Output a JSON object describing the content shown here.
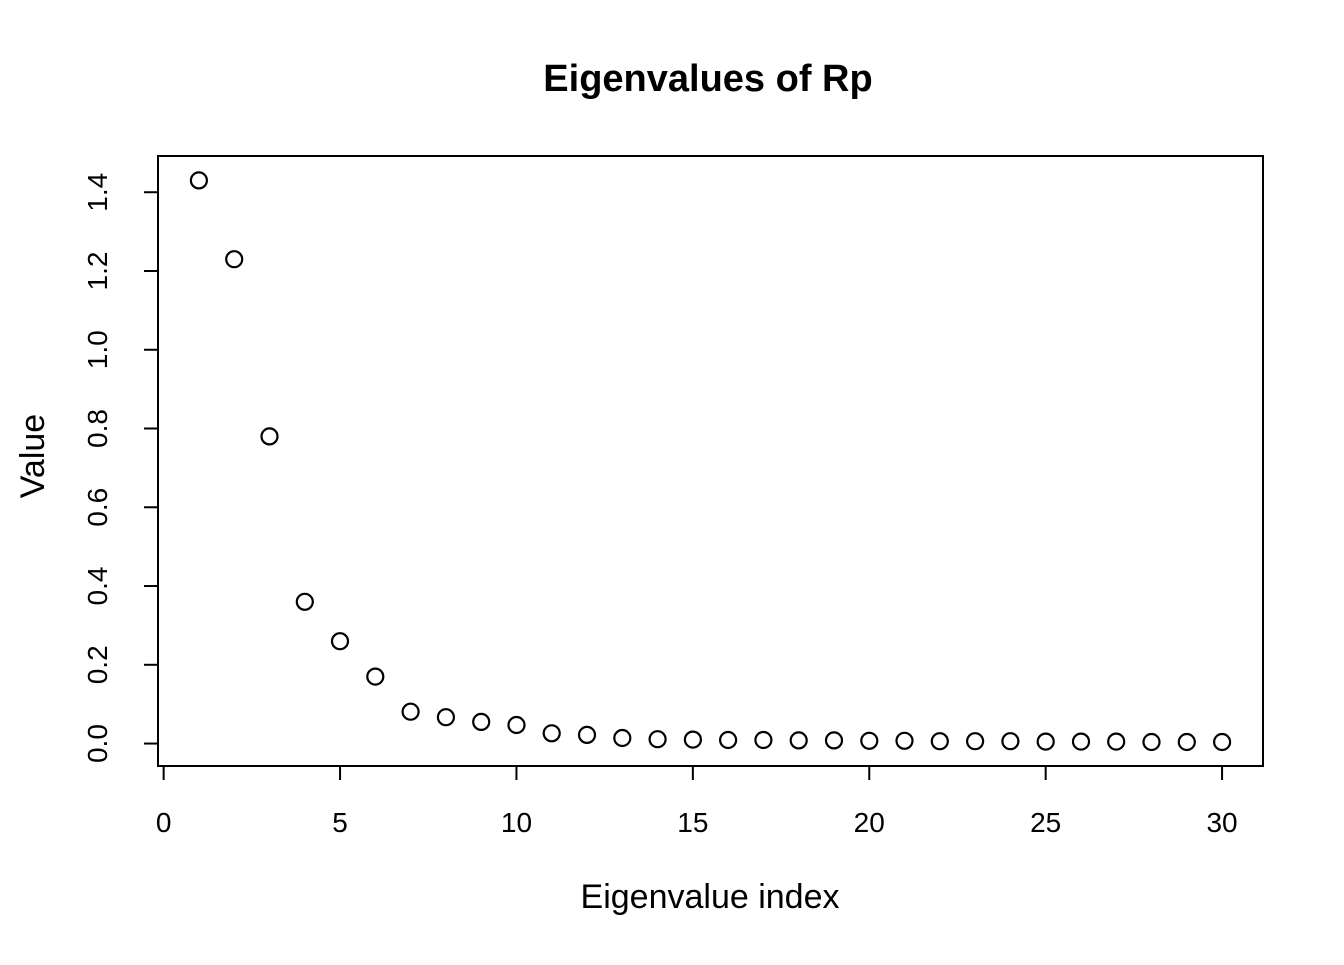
{
  "page": {
    "background": "#ffffff",
    "foreground": "#000000"
  },
  "chart_data": {
    "type": "scatter",
    "title": "Eigenvalues of Rp",
    "xlabel": "Eigenvalue index",
    "ylabel": "Value",
    "marker": "open-circle",
    "grid": false,
    "frame": "box",
    "legend": "none",
    "point_color": "#000000",
    "background": "#ffffff",
    "x": [
      1,
      2,
      3,
      4,
      5,
      6,
      7,
      8,
      9,
      10,
      11,
      12,
      13,
      14,
      15,
      16,
      17,
      18,
      19,
      20,
      21,
      22,
      23,
      24,
      25,
      26,
      27,
      28,
      29,
      30
    ],
    "y": [
      1.43,
      1.23,
      0.78,
      0.36,
      0.26,
      0.17,
      0.081,
      0.067,
      0.055,
      0.047,
      0.026,
      0.022,
      0.014,
      0.011,
      0.01,
      0.009,
      0.009,
      0.008,
      0.008,
      0.007,
      0.007,
      0.006,
      0.006,
      0.006,
      0.005,
      0.005,
      0.005,
      0.004,
      0.004,
      0.004
    ],
    "x_ticks": [
      0,
      5,
      10,
      15,
      20,
      25,
      30
    ],
    "x_tick_labels": [
      "0",
      "5",
      "10",
      "15",
      "20",
      "25",
      "30"
    ],
    "y_ticks": [
      0.0,
      0.2,
      0.4,
      0.6,
      0.8,
      1.0,
      1.2,
      1.4
    ],
    "y_tick_labels": [
      "0.0",
      "0.2",
      "0.4",
      "0.6",
      "0.8",
      "1.0",
      "1.2",
      "1.4"
    ],
    "xlim": [
      -0.16,
      31.16
    ],
    "ylim": [
      -0.057,
      1.492
    ]
  }
}
